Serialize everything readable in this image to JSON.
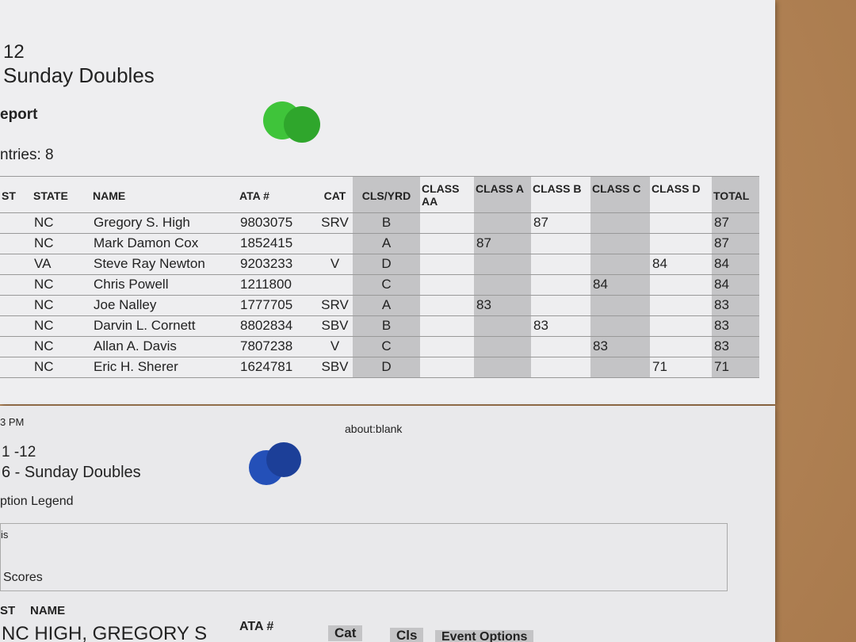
{
  "sheet1": {
    "event": "12",
    "title": "Sunday Doubles",
    "report": "eport",
    "entries": "ntries: 8",
    "table": {
      "headers": [
        "ST",
        "STATE",
        "NAME",
        "ATA #",
        "CAT",
        "CLS/YRD",
        "CLASS AA",
        "CLASS A",
        "CLASS B",
        "CLASS C",
        "CLASS D",
        "TOTAL"
      ],
      "rows": [
        {
          "state": "NC",
          "name": "Gregory S. High",
          "ata": 9803075,
          "cat": "SRV",
          "cls": "B",
          "score": 87,
          "total": 87
        },
        {
          "state": "NC",
          "name": "Mark Damon Cox",
          "ata": 1852415,
          "cls": "A",
          "score": 87,
          "total": 87
        },
        {
          "state": "VA",
          "name": "Steve Ray Newton",
          "ata": 9203233,
          "cat": "V",
          "cls": "D",
          "score": 84,
          "total": 84
        },
        {
          "state": "NC",
          "name": "Chris Powell",
          "ata": 1211800,
          "cls": "C",
          "score": 84,
          "total": 84
        },
        {
          "state": "NC",
          "name": "Joe Nalley",
          "ata": 1777705,
          "cat": "SRV",
          "cls": "A",
          "score": 83,
          "total": 83
        },
        {
          "state": "NC",
          "name": "Darvin L. Cornett",
          "ata": 8802834,
          "cat": "SBV",
          "cls": "B",
          "score": 83,
          "total": 83
        },
        {
          "state": "NC",
          "name": "Allan A. Davis",
          "ata": 7807238,
          "cat": "V",
          "cls": "C",
          "score": 83,
          "total": 83
        },
        {
          "state": "NC",
          "name": "Eric H. Sherer",
          "ata": 1624781,
          "cat": "SBV",
          "cls": "D",
          "score": 71,
          "total": 71
        }
      ]
    }
  },
  "sheet2": {
    "time": "3 PM",
    "url": "about:blank",
    "event": "1 -12",
    "title": "6 - Sunday Doubles",
    "legend": "ption Legend",
    "legend_text": "is",
    "scores": "Scores",
    "headers": [
      "ST",
      "NAME",
      "ATA #",
      "Cat",
      "Cls",
      "Event Options"
    ],
    "first_row": "NC HIGH, GREGORY S"
  }
}
